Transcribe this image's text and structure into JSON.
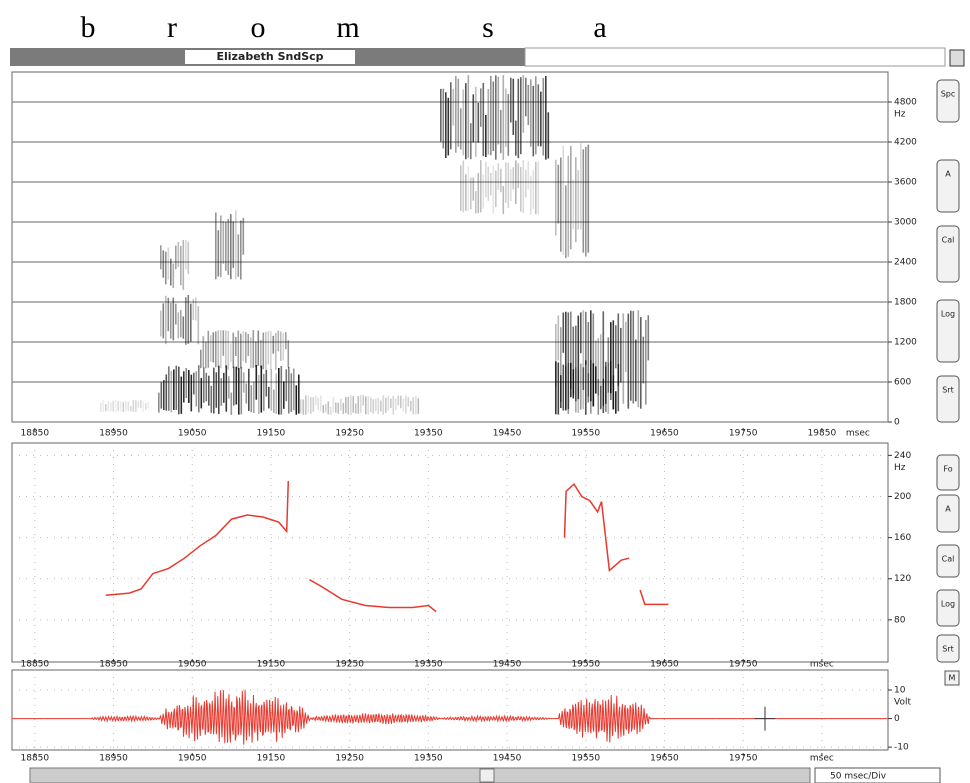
{
  "phonemes": [
    "b",
    "r",
    "o",
    "m",
    "s",
    "a"
  ],
  "window": {
    "title": "Elizabeth SndScp"
  },
  "time_axis": {
    "xlim": [
      18821,
      19934
    ],
    "ticks": [
      18850,
      18950,
      19050,
      19150,
      19250,
      19350,
      19450,
      19550,
      19650,
      19750,
      19850
    ],
    "unit": "msec"
  },
  "spectrogram": {
    "ylim": [
      0,
      5250
    ],
    "yticks": [
      0,
      600,
      1200,
      1800,
      2400,
      3000,
      3600,
      4200,
      4800
    ],
    "unit": "Hz",
    "buttons": [
      "Spc",
      "A",
      "Cal",
      "Log",
      "Srt"
    ]
  },
  "pitch": {
    "ylim": [
      39,
      252
    ],
    "yticks": [
      80,
      120,
      160,
      200,
      240
    ],
    "unit": "Hz",
    "color": "#e8392f",
    "buttons": [
      "Fo",
      "A",
      "Cal",
      "Log",
      "Srt"
    ],
    "segments": [
      {
        "t": [
          18940,
          18970,
          18985,
          19000,
          19020,
          19040,
          19060,
          19080,
          19100,
          19120,
          19140,
          19160,
          19170,
          19172
        ],
        "hz": [
          104,
          106,
          110,
          125,
          130,
          140,
          152,
          162,
          178,
          182,
          180,
          175,
          166,
          215
        ]
      },
      {
        "t": [
          19199,
          19215,
          19240,
          19270,
          19300,
          19330,
          19350,
          19360
        ],
        "hz": [
          119,
          112,
          100,
          94,
          92,
          92,
          94,
          88
        ]
      },
      {
        "t": [
          19523,
          19525,
          19535,
          19545,
          19555,
          19565,
          19570,
          19580,
          19595,
          19605
        ],
        "hz": [
          160,
          205,
          212,
          200,
          196,
          185,
          195,
          128,
          138,
          140
        ]
      },
      {
        "t": [
          19619,
          19625,
          19655
        ],
        "hz": [
          109,
          95,
          95
        ]
      }
    ]
  },
  "waveform": {
    "ylim": [
      -11,
      17
    ],
    "yticks": [
      10,
      0,
      -10
    ],
    "unit": "Volt",
    "button": "M"
  },
  "scroll": {
    "scale": "50 msec/Div"
  }
}
